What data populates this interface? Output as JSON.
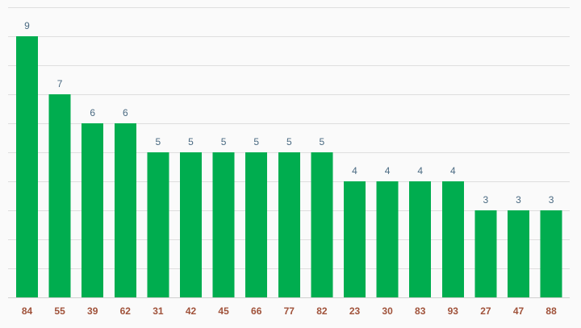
{
  "colors": {
    "bar": "#00ad4f",
    "value_label": "#4a6a82",
    "tick_label": "#a0523a",
    "grid": "#dedede",
    "background": "#fafafa"
  },
  "chart_data": {
    "type": "bar",
    "categories": [
      "84",
      "55",
      "39",
      "62",
      "31",
      "42",
      "45",
      "66",
      "77",
      "82",
      "23",
      "30",
      "83",
      "93",
      "27",
      "47",
      "88"
    ],
    "values": [
      9,
      7,
      6,
      6,
      5,
      5,
      5,
      5,
      5,
      5,
      4,
      4,
      4,
      4,
      3,
      3,
      3
    ],
    "title": "",
    "xlabel": "",
    "ylabel": "",
    "ylim": [
      0,
      10
    ],
    "grid": true,
    "legend": "none",
    "data_labels": true
  }
}
